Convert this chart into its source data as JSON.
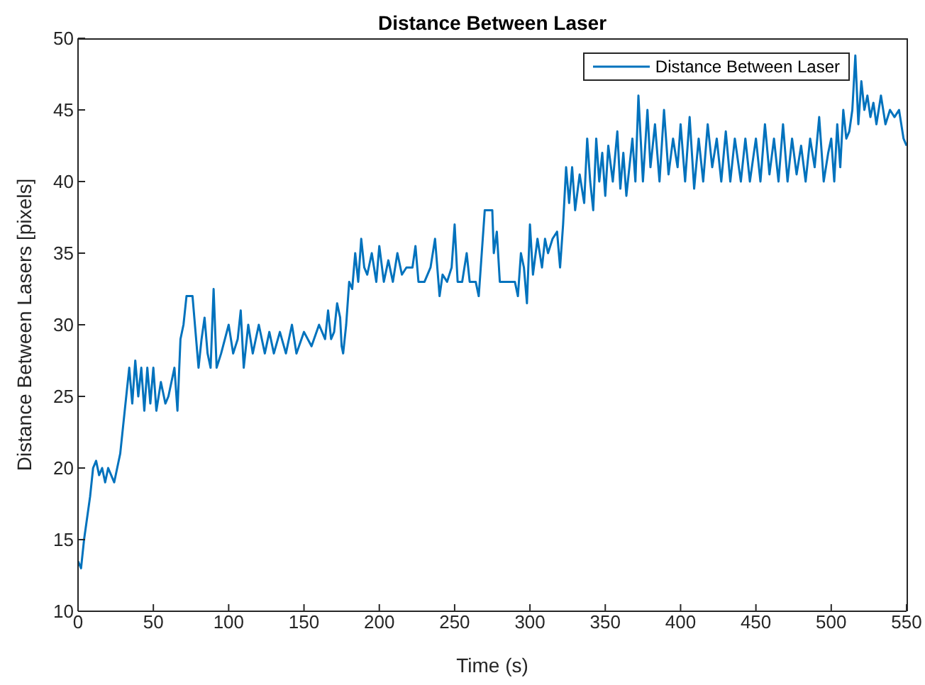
{
  "chart_data": {
    "type": "line",
    "title": "Distance Between Laser",
    "xlabel": "Time (s)",
    "ylabel": "Distance Between Lasers [pixels]",
    "xlim": [
      0,
      550
    ],
    "xticks": [
      0,
      50,
      100,
      150,
      200,
      250,
      300,
      350,
      400,
      450,
      500,
      550
    ],
    "ylim": [
      10,
      50
    ],
    "yticks": [
      10,
      15,
      20,
      25,
      30,
      35,
      40,
      45,
      50
    ],
    "grid": false,
    "legend": "top right",
    "line_style": "solid",
    "marker": "none",
    "x": [
      0,
      2,
      4,
      6,
      8,
      10,
      12,
      14,
      16,
      18,
      20,
      24,
      26,
      28,
      30,
      32,
      34,
      36,
      38,
      40,
      42,
      44,
      46,
      48,
      50,
      52,
      55,
      58,
      60,
      64,
      66,
      68,
      70,
      72,
      76,
      78,
      80,
      82,
      84,
      86,
      88,
      90,
      92,
      95,
      100,
      103,
      106,
      108,
      110,
      113,
      116,
      120,
      124,
      127,
      130,
      134,
      138,
      142,
      145,
      150,
      155,
      160,
      164,
      166,
      168,
      170,
      172,
      174,
      175,
      176,
      178,
      180,
      182,
      184,
      186,
      188,
      190,
      192,
      195,
      198,
      200,
      203,
      206,
      209,
      212,
      215,
      218,
      222,
      224,
      226,
      230,
      234,
      237,
      240,
      242,
      245,
      248,
      250,
      252,
      255,
      258,
      260,
      264,
      266,
      268,
      270,
      275,
      276,
      278,
      280,
      285,
      290,
      292,
      294,
      296,
      298,
      300,
      302,
      305,
      308,
      310,
      312,
      315,
      318,
      320,
      322,
      324,
      326,
      328,
      330,
      333,
      336,
      338,
      340,
      342,
      344,
      346,
      348,
      350,
      352,
      355,
      358,
      360,
      362,
      364,
      366,
      368,
      370,
      372,
      375,
      378,
      380,
      383,
      386,
      389,
      392,
      395,
      398,
      400,
      403,
      406,
      409,
      412,
      415,
      418,
      421,
      424,
      427,
      430,
      433,
      436,
      440,
      443,
      446,
      450,
      453,
      456,
      459,
      462,
      465,
      468,
      471,
      474,
      477,
      480,
      483,
      486,
      489,
      492,
      495,
      498,
      500,
      502,
      504,
      506,
      508,
      510,
      512,
      514,
      516,
      518,
      520,
      522,
      524,
      526,
      528,
      530,
      533,
      536,
      539,
      542,
      545,
      548,
      550
    ],
    "series": [
      {
        "name": "Distance Between Laser",
        "color": "#0072bd",
        "values": [
          13.5,
          13,
          15,
          16.5,
          18,
          20,
          20.5,
          19.5,
          20,
          19,
          20,
          19,
          20,
          21,
          23,
          25,
          27,
          24.5,
          27.5,
          25,
          27,
          24,
          27,
          24.5,
          27,
          24,
          26,
          24.5,
          25,
          27,
          24,
          29,
          30,
          32,
          32,
          29.5,
          27,
          29,
          30.5,
          28,
          27,
          32.5,
          27,
          28,
          30,
          28,
          29,
          31,
          27,
          30,
          28,
          30,
          28,
          29.5,
          28,
          29.5,
          28,
          30,
          28,
          29.5,
          28.5,
          30,
          29,
          31,
          29,
          29.5,
          31.5,
          30.5,
          28.5,
          28,
          30,
          33,
          32.5,
          35,
          33,
          36,
          34,
          33.5,
          35,
          33,
          35.5,
          33,
          34.5,
          33,
          35,
          33.5,
          34,
          34,
          35.5,
          33,
          33,
          34,
          36,
          32,
          33.5,
          33,
          34,
          37,
          33,
          33,
          35,
          33,
          33,
          32,
          35,
          38,
          38,
          35,
          36.5,
          33,
          33,
          33,
          32,
          35,
          34,
          31.5,
          37,
          33.5,
          36,
          34,
          36,
          35,
          36,
          36.5,
          34,
          37,
          41,
          38.5,
          41,
          38,
          40.5,
          38.5,
          43,
          40,
          38,
          43,
          40,
          42,
          39,
          42.5,
          40,
          43.5,
          39.5,
          42,
          39,
          41,
          43,
          40,
          46,
          40,
          45,
          41,
          44,
          40,
          45,
          40.5,
          43,
          41,
          44,
          40,
          44.5,
          39.5,
          43,
          40,
          44,
          41,
          43,
          40,
          43.5,
          40,
          43,
          40,
          43,
          40,
          43,
          40,
          44,
          40.5,
          43,
          40,
          44,
          40,
          43,
          40.5,
          42.5,
          40,
          43,
          41,
          44.5,
          40,
          42,
          43,
          40,
          44,
          41,
          45,
          43,
          43.5,
          45,
          48.8,
          44,
          47,
          45,
          46,
          44.5,
          45.5,
          44,
          46,
          44,
          45,
          44.5,
          45,
          43,
          42.5
        ]
      }
    ]
  }
}
